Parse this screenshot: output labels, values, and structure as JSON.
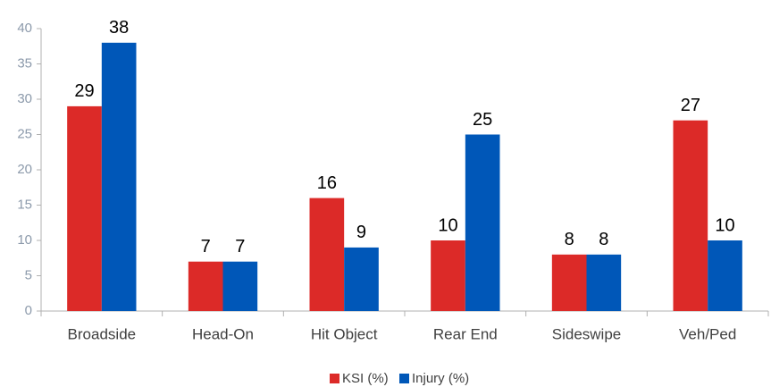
{
  "chart_data": {
    "type": "bar",
    "categories": [
      "Broadside",
      "Head-On",
      "Hit Object",
      "Rear End",
      "Sideswipe",
      "Veh/Ped"
    ],
    "series": [
      {
        "name": "KSI (%)",
        "color": "#dc2a28",
        "values": [
          29,
          7,
          16,
          10,
          8,
          27
        ]
      },
      {
        "name": "Injury (%)",
        "color": "#0057b8",
        "values": [
          38,
          7,
          9,
          25,
          8,
          10
        ]
      }
    ],
    "ylim": [
      0,
      40
    ],
    "yticks": [
      0,
      5,
      10,
      15,
      20,
      25,
      30,
      35,
      40
    ],
    "grid": false,
    "legend": "bottom"
  }
}
